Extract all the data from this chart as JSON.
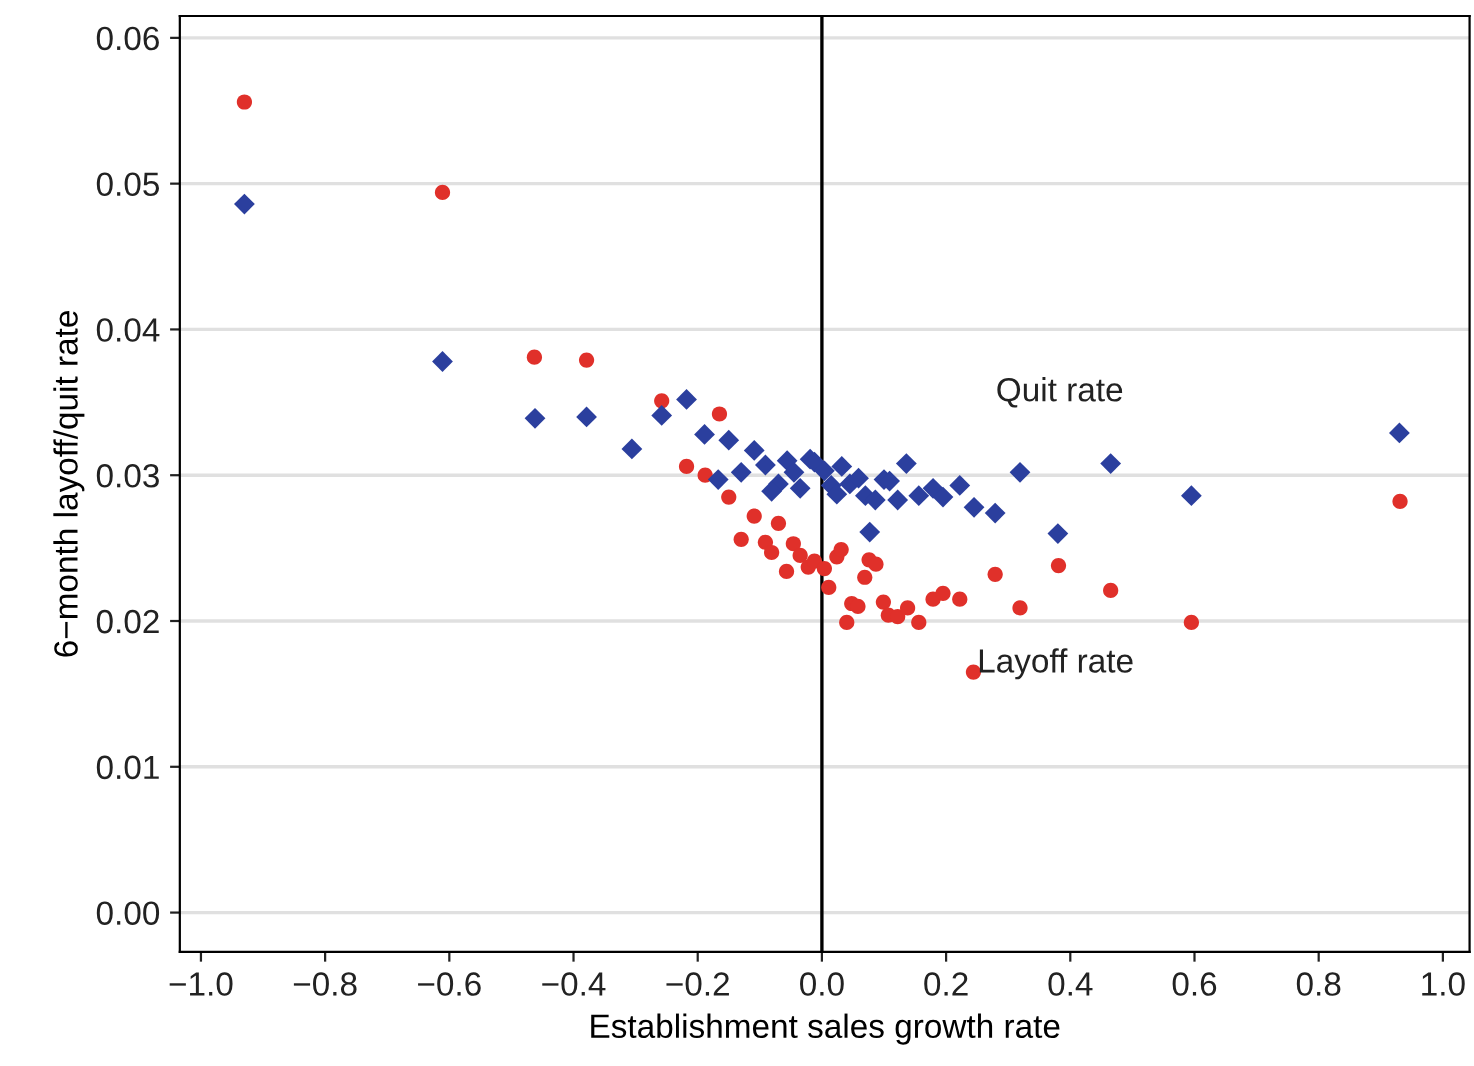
{
  "chart_data": {
    "type": "scatter",
    "xlabel": "Establishment sales growth rate",
    "ylabel": "6−month layoff/quit rate",
    "xlim": [
      -1.034,
      1.043
    ],
    "ylim": [
      -0.0027,
      0.0615
    ],
    "xticks": [
      {
        "value": -1.0,
        "label": "−1.0"
      },
      {
        "value": -0.8,
        "label": "−0.8"
      },
      {
        "value": -0.6,
        "label": "−0.6"
      },
      {
        "value": -0.4,
        "label": "−0.4"
      },
      {
        "value": -0.2,
        "label": "−0.2"
      },
      {
        "value": 0.0,
        "label": "0.0"
      },
      {
        "value": 0.2,
        "label": "0.2"
      },
      {
        "value": 0.4,
        "label": "0.4"
      },
      {
        "value": 0.6,
        "label": "0.6"
      },
      {
        "value": 0.8,
        "label": "0.8"
      },
      {
        "value": 1.0,
        "label": "1.0"
      }
    ],
    "yticks": [
      {
        "value": 0,
        "label": "0.00"
      },
      {
        "value": 0.01,
        "label": "0.01"
      },
      {
        "value": 0.02,
        "label": "0.02"
      },
      {
        "value": 0.03,
        "label": "0.03"
      },
      {
        "value": 0.04,
        "label": "0.04"
      },
      {
        "value": 0.05,
        "label": "0.05"
      },
      {
        "value": 0.06,
        "label": "0.06"
      }
    ],
    "grid": "y",
    "legend": false,
    "ref_lines": [
      {
        "axis": "x",
        "value": 0,
        "color": "#000000"
      }
    ],
    "series": [
      {
        "name": "Layoff rate",
        "color": "#e0302a",
        "marker": "circle",
        "x": [
          -0.93,
          -0.611,
          -0.463,
          -0.379,
          -0.306,
          -0.258,
          -0.218,
          -0.188,
          -0.165,
          -0.15,
          -0.109,
          -0.07,
          -0.13,
          -0.091,
          -0.081,
          -0.046,
          -0.035,
          -0.057,
          -0.022,
          -0.012,
          0.004,
          0.011,
          0.024,
          0.031,
          0.069,
          0.076,
          0.087,
          0.04,
          0.048,
          0.058,
          0.099,
          0.107,
          0.122,
          0.138,
          0.156,
          0.179,
          0.195,
          0.222,
          0.244,
          0.279,
          0.319,
          0.381,
          0.465,
          0.595,
          0.931
        ],
        "values": [
          0.0556,
          0.0494,
          0.0381,
          0.0379,
          null,
          0.0351,
          0.0306,
          0.03,
          0.0342,
          0.0285,
          0.0272,
          0.0267,
          0.0256,
          0.0254,
          0.0247,
          0.0253,
          0.0245,
          0.0234,
          0.0237,
          0.0241,
          0.0236,
          0.0223,
          0.0244,
          0.0249,
          0.023,
          0.0242,
          0.0239,
          0.0199,
          0.0212,
          0.021,
          0.0213,
          0.0204,
          0.0203,
          0.0209,
          0.0199,
          0.0215,
          0.0219,
          0.0215,
          0.0165,
          0.0232,
          0.0209,
          0.0238,
          0.0221,
          0.0199,
          0.0282
        ]
      },
      {
        "name": "Quit rate",
        "color": "#2b3f9e",
        "marker": "diamond",
        "x": [
          -0.93,
          -0.611,
          -0.462,
          -0.379,
          -0.306,
          -0.258,
          -0.218,
          -0.189,
          -0.15,
          -0.167,
          -0.13,
          -0.109,
          -0.091,
          -0.07,
          -0.081,
          -0.056,
          -0.045,
          -0.035,
          -0.019,
          -0.012,
          0.004,
          0.015,
          0.024,
          0.032,
          0.045,
          0.059,
          0.07,
          0.086,
          0.077,
          0.1,
          0.109,
          0.122,
          0.136,
          0.156,
          0.179,
          0.195,
          0.222,
          0.245,
          0.279,
          0.319,
          0.38,
          0.465,
          0.595,
          0.93
        ],
        "values": [
          0.0486,
          0.0378,
          0.0339,
          0.034,
          0.0318,
          0.0341,
          0.0352,
          0.0328,
          0.0324,
          0.0297,
          0.0302,
          0.0317,
          0.0307,
          0.0294,
          0.0289,
          0.031,
          0.0302,
          0.0291,
          0.0311,
          0.0309,
          0.0303,
          0.0293,
          0.0287,
          0.0306,
          0.0294,
          0.0298,
          0.0286,
          0.0283,
          0.0261,
          0.0297,
          0.0296,
          0.0283,
          0.0308,
          0.0286,
          0.0291,
          0.0285,
          0.0293,
          0.0278,
          0.0274,
          0.0302,
          0.026,
          0.0308,
          0.0286,
          0.0329
        ]
      }
    ]
  }
}
